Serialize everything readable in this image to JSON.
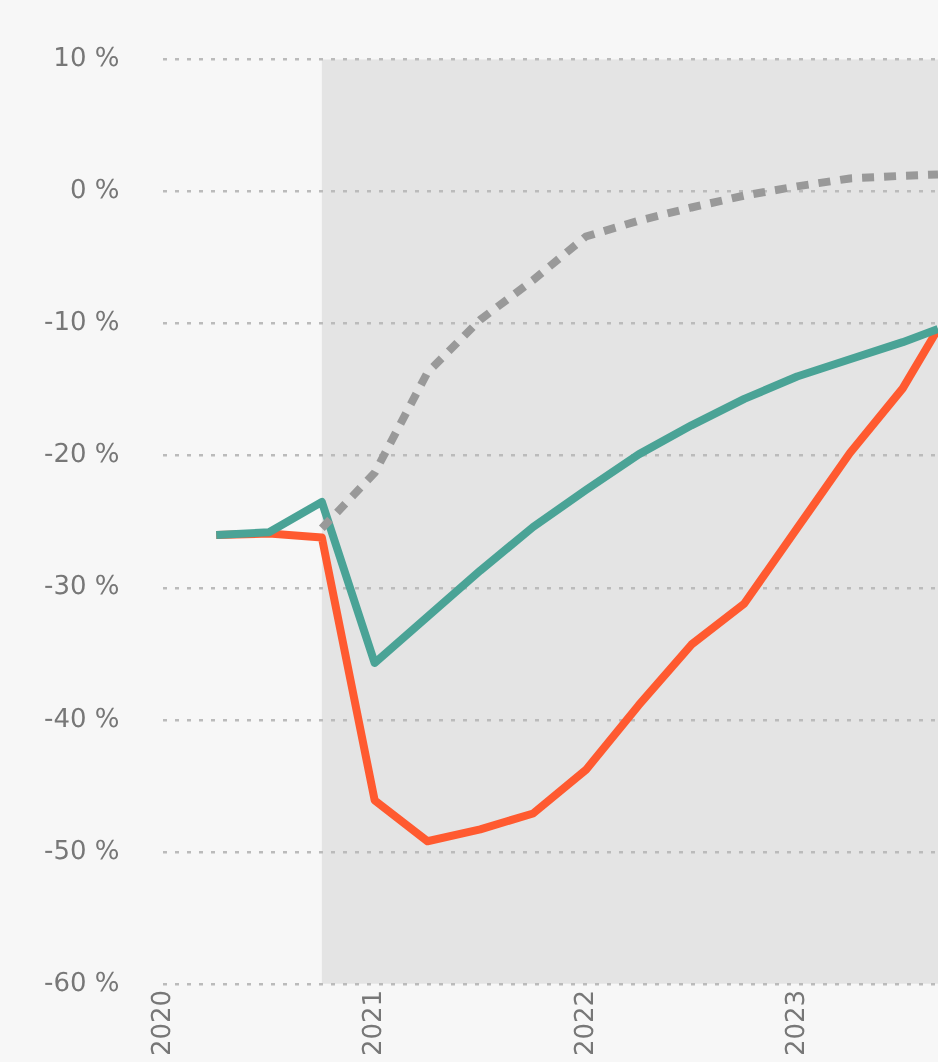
{
  "chart_data": {
    "type": "line",
    "x": [
      2020.25,
      2020.5,
      2020.75,
      2021,
      2021.25,
      2021.5,
      2021.75,
      2022,
      2022.25,
      2022.5,
      2022.75,
      2023,
      2023.25,
      2023.5,
      2023.667
    ],
    "series": [
      {
        "color": "#ff5a30",
        "values": [
          -26.0,
          -25.9,
          -26.2,
          -46.1,
          -49.2,
          -48.3,
          -47.1,
          -43.8,
          -38.9,
          -34.3,
          -31.2,
          -25.5,
          -19.8,
          -14.9,
          -10.4
        ]
      },
      {
        "color": "#4aa396",
        "values": [
          -26.0,
          -25.8,
          -23.5,
          -35.7,
          -32.2,
          -28.7,
          -25.4,
          -22.6,
          -19.9,
          -17.7,
          -15.7,
          -14.0,
          -12.7,
          -11.4,
          -10.4
        ]
      },
      {
        "color": "#999999",
        "line_style": "dashed",
        "values": [
          null,
          null,
          -25.5,
          -21.3,
          -13.7,
          -9.7,
          -6.7,
          -3.4,
          -2.2,
          -1.2,
          -0.3,
          0.4,
          1.0,
          1.2,
          1.3
        ]
      }
    ],
    "xlim": [
      2020,
      2023.667
    ],
    "xticks": [
      2020,
      2021,
      2022,
      2023
    ],
    "ylim": [
      -60,
      10
    ],
    "yticks": [
      {
        "value": -60,
        "label": "-60 %"
      },
      {
        "value": -50,
        "label": "-50 %"
      },
      {
        "value": -40,
        "label": "-40 %"
      },
      {
        "value": -30,
        "label": "-30 %"
      },
      {
        "value": -20,
        "label": "-20 %"
      },
      {
        "value": -10,
        "label": "-10 %"
      },
      {
        "value": 0,
        "label": "0 %"
      },
      {
        "value": 10,
        "label": "10 %"
      }
    ],
    "bands": [
      {
        "axis": "x",
        "from": 2020.75,
        "to": 2023.667,
        "color": "#e4e4e4"
      }
    ],
    "grid": "y",
    "legend": false,
    "marker": "none",
    "line_style": "solid"
  }
}
